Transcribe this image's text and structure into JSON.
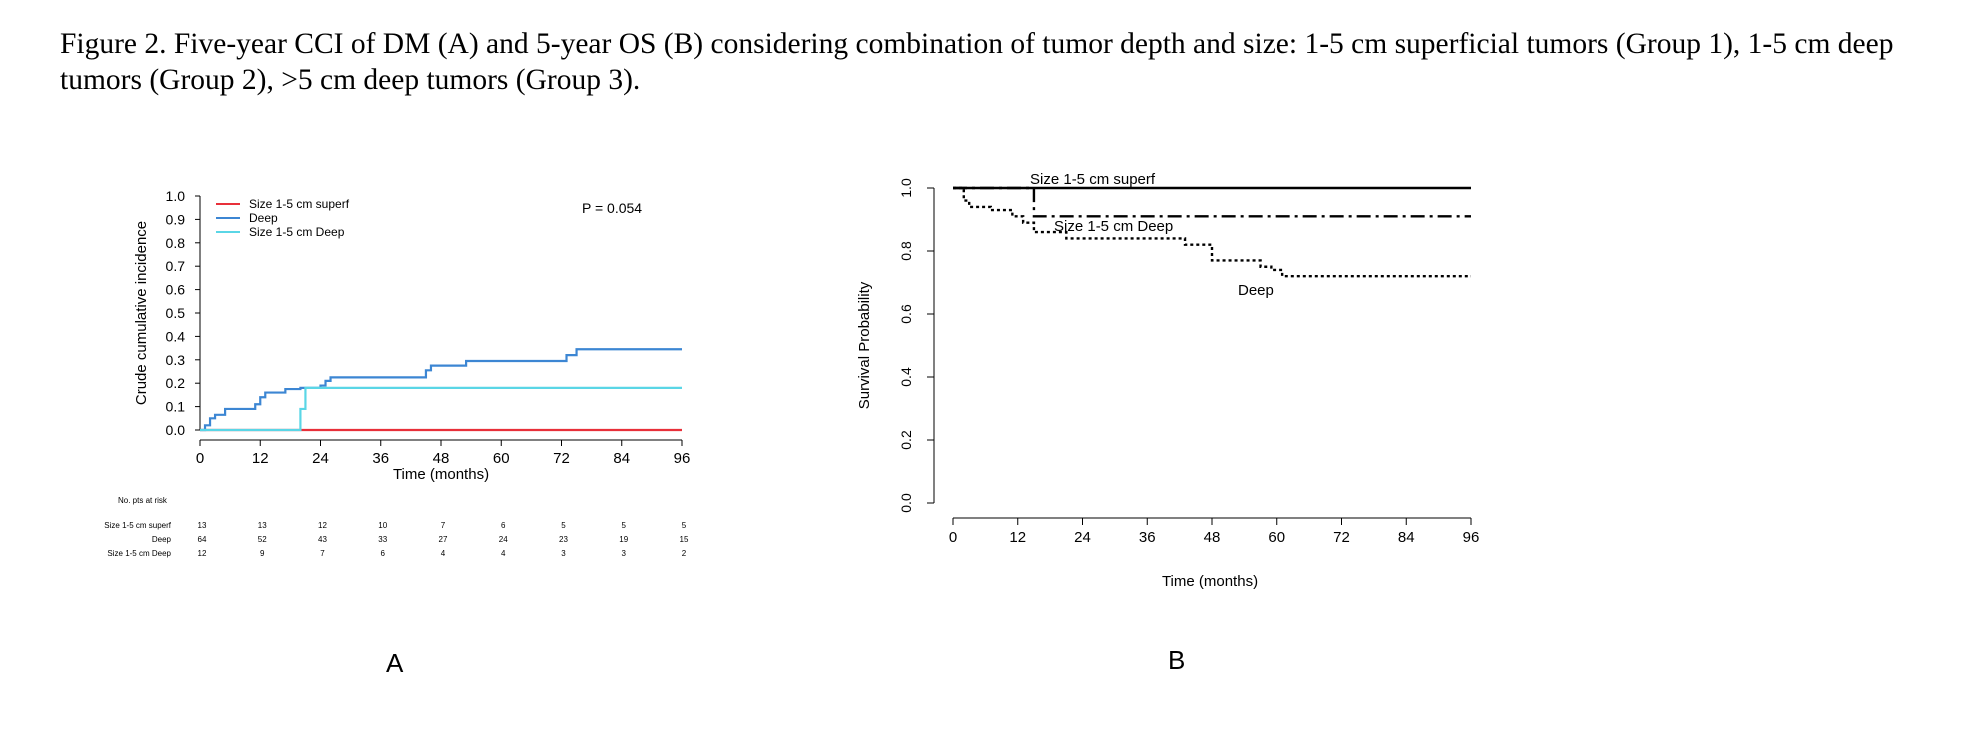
{
  "figure": {
    "caption": "Figure 2. Five-year CCI of DM (A) and 5-year OS (B) considering combination of tumor depth and size: 1-5 cm superficial tumors (Group 1), 1-5 cm deep tumors (Group 2), >5 cm deep tumors (Group 3).",
    "panel_a_label": "A",
    "panel_b_label": "B"
  },
  "chart_data": [
    {
      "type": "line",
      "panel": "A",
      "step": true,
      "xlabel": "Time (months)",
      "ylabel": "Crude cumulative incidence",
      "xlim": [
        0,
        96
      ],
      "ylim": [
        0,
        1.0
      ],
      "xticks": [
        0,
        12,
        24,
        36,
        48,
        60,
        72,
        84,
        96
      ],
      "yticks": [
        0.0,
        0.1,
        0.2,
        0.3,
        0.4,
        0.5,
        0.6,
        0.7,
        0.8,
        0.9,
        1.0
      ],
      "legend_position": "top-left",
      "annotation": "P = 0.054",
      "series": [
        {
          "name": "Size 1-5 cm superf",
          "color": "#e8303a",
          "x": [
            0,
            96
          ],
          "y": [
            0,
            0
          ]
        },
        {
          "name": "Deep",
          "color": "#3c86d3",
          "x": [
            0,
            1,
            2,
            3,
            5,
            11,
            12,
            13,
            17,
            20,
            24,
            25,
            26,
            45,
            46,
            53,
            73,
            75,
            96
          ],
          "y": [
            0,
            0.02,
            0.05,
            0.065,
            0.09,
            0.11,
            0.14,
            0.16,
            0.175,
            0.18,
            0.19,
            0.21,
            0.225,
            0.255,
            0.275,
            0.295,
            0.32,
            0.345,
            0.345
          ]
        },
        {
          "name": "Size 1-5 cm Deep",
          "color": "#5ad6e6",
          "x": [
            0,
            20,
            21,
            96
          ],
          "y": [
            0,
            0.09,
            0.18,
            0.18
          ]
        }
      ],
      "risk_table": {
        "title": "No. pts at risk",
        "times": [
          0,
          12,
          24,
          36,
          48,
          60,
          72,
          84,
          96
        ],
        "rows": [
          {
            "label": "Size 1-5 cm superf",
            "counts": [
              "13",
              "13",
              "12",
              "10",
              "7",
              "6",
              "5",
              "5",
              "5"
            ]
          },
          {
            "label": "Deep",
            "counts": [
              "64",
              "52",
              "43",
              "33",
              "27",
              "24",
              "23",
              "19",
              "15"
            ]
          },
          {
            "label": "Size 1-5 cm Deep",
            "counts": [
              "12",
              "9",
              "7",
              "6",
              "4",
              "4",
              "3",
              "3",
              "2"
            ]
          }
        ]
      }
    },
    {
      "type": "line",
      "panel": "B",
      "step": true,
      "xlabel": "Time (months)",
      "ylabel": "Survival Probability",
      "xlim": [
        0,
        96
      ],
      "ylim": [
        0,
        1.0
      ],
      "xticks": [
        0,
        12,
        24,
        36,
        48,
        60,
        72,
        84,
        96
      ],
      "yticks": [
        "0.0",
        "0.2",
        "0.4",
        "0.6",
        "0.8",
        "1.0"
      ],
      "series": [
        {
          "name": "Size 1-5 cm superf",
          "line_style": "solid",
          "x": [
            0,
            96
          ],
          "y": [
            1.0,
            1.0
          ]
        },
        {
          "name": "Size 1-5 cm Deep",
          "line_style": "dashdot",
          "x": [
            0,
            15,
            96
          ],
          "y": [
            1.0,
            0.91,
            0.91
          ]
        },
        {
          "name": "Deep",
          "line_style": "dotted",
          "x": [
            0,
            2,
            3,
            7,
            11,
            13,
            15,
            21,
            35,
            43,
            48,
            57,
            59,
            61,
            96
          ],
          "y": [
            1.0,
            0.96,
            0.94,
            0.93,
            0.91,
            0.89,
            0.86,
            0.84,
            0.84,
            0.82,
            0.77,
            0.75,
            0.74,
            0.72,
            0.72
          ]
        }
      ],
      "curve_labels": [
        "Size 1-5 cm superf",
        "Size 1-5 cm Deep",
        "Deep"
      ]
    }
  ]
}
